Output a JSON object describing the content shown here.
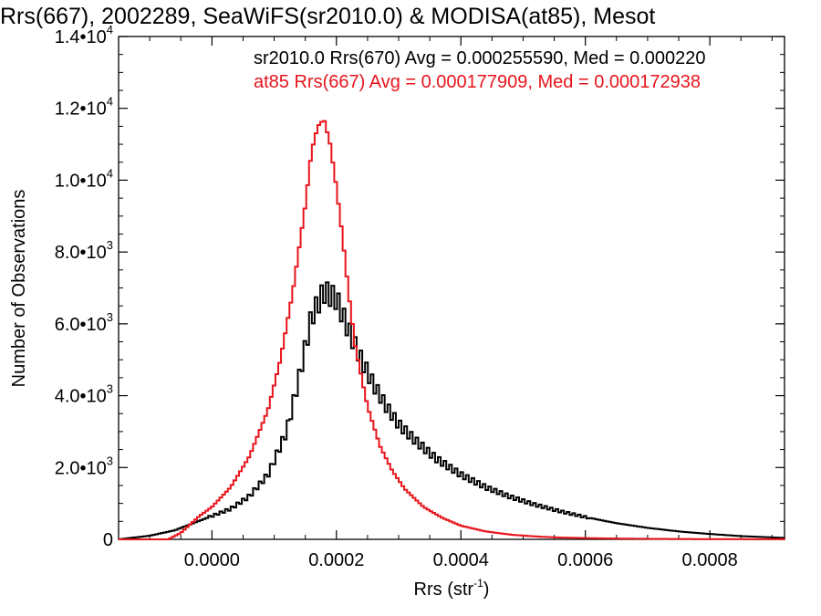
{
  "chart_data": {
    "type": "line",
    "title": "Rrs(667), 2002289, SeaWiFS(sr2010.0) & MODISA(at85), Mesot",
    "xlabel": "Rrs (str",
    "xlabel_sup": "-1",
    "xlabel_tail": ")",
    "ylabel": "Number of Observations",
    "xlim": [
      -0.00015,
      0.00092
    ],
    "ylim": [
      0,
      14000
    ],
    "x_ticks": [
      {
        "value": 0.0,
        "label": "0.0000"
      },
      {
        "value": 0.0002,
        "label": "0.0002"
      },
      {
        "value": 0.0004,
        "label": "0.0004"
      },
      {
        "value": 0.0006,
        "label": "0.0006"
      },
      {
        "value": 0.0008,
        "label": "0.0008"
      }
    ],
    "y_ticks": [
      {
        "value": 0,
        "label": "0",
        "sup": ""
      },
      {
        "value": 2000,
        "label": "2.0•10",
        "sup": "3"
      },
      {
        "value": 4000,
        "label": "4.0•10",
        "sup": "3"
      },
      {
        "value": 6000,
        "label": "6.0•10",
        "sup": "3"
      },
      {
        "value": 8000,
        "label": "8.0•10",
        "sup": "3"
      },
      {
        "value": 10000,
        "label": "1.0•10",
        "sup": "4"
      },
      {
        "value": 12000,
        "label": "1.2•10",
        "sup": "4"
      },
      {
        "value": 14000,
        "label": "1.4•10",
        "sup": "4"
      }
    ],
    "legend_placement": "top-right",
    "annotations": [
      {
        "text": "sr2010.0 Rrs(670) Avg = 0.000255590, Med = 0.000220",
        "color": "#000000"
      },
      {
        "text": "at85 Rrs(667) Avg = 0.000177909, Med = 0.000172938",
        "color": "#e8141c"
      }
    ],
    "grid": false,
    "series": [
      {
        "name": "sr2010.0 Rrs(670)",
        "color": "#000000",
        "x": [
          -0.00015,
          -0.0001,
          -6e-05,
          -3e-05,
          0.0,
          3e-05,
          6e-05,
          9e-05,
          0.00012,
          0.00014,
          0.00016,
          0.00018,
          0.0002,
          0.00022,
          0.00024,
          0.00026,
          0.00028,
          0.0003,
          0.00033,
          0.00036,
          0.0004,
          0.00044,
          0.00048,
          0.00052,
          0.00056,
          0.0006,
          0.00065,
          0.0007,
          0.00075,
          0.0008,
          0.00085,
          0.00092
        ],
        "y": [
          0,
          100,
          250,
          450,
          650,
          850,
          1200,
          1800,
          3000,
          4500,
          6200,
          6900,
          6700,
          5800,
          5000,
          4300,
          3700,
          3200,
          2700,
          2250,
          1800,
          1450,
          1180,
          960,
          780,
          620,
          450,
          320,
          220,
          150,
          90,
          40
        ]
      },
      {
        "name": "at85 Rrs(667)",
        "color": "#e8141c",
        "x": [
          -0.00015,
          -0.0001,
          -7e-05,
          -5e-05,
          -2e-05,
          0.0,
          3e-05,
          6e-05,
          9e-05,
          0.00011,
          0.00013,
          0.00015,
          0.00016,
          0.00017,
          0.00018,
          0.00019,
          0.0002,
          0.00021,
          0.00022,
          0.00023,
          0.00025,
          0.00027,
          0.00029,
          0.00031,
          0.00034,
          0.00037,
          0.0004,
          0.00044,
          0.00048,
          0.00052,
          0.00056,
          0.0006,
          0.00066,
          0.00072,
          0.0008,
          0.00092
        ],
        "y": [
          0,
          0,
          0,
          180,
          650,
          900,
          1450,
          2300,
          3600,
          5000,
          6900,
          9300,
          10800,
          11500,
          11700,
          11000,
          9800,
          8400,
          6800,
          5400,
          3700,
          2600,
          1900,
          1400,
          900,
          600,
          380,
          220,
          130,
          80,
          50,
          35,
          20,
          12,
          6,
          3
        ]
      }
    ]
  }
}
